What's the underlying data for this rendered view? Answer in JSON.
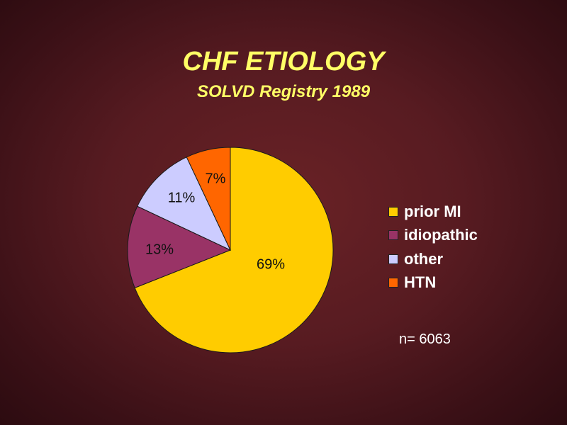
{
  "chart_data": {
    "type": "pie",
    "title": "CHF ETIOLOGY",
    "subtitle": "SOLVD Registry 1989",
    "categories": [
      "prior MI",
      "idiopathic",
      "other",
      "HTN"
    ],
    "values": [
      69,
      13,
      11,
      7
    ],
    "value_labels": [
      "69%",
      "13%",
      "11%",
      "7%"
    ],
    "colors": [
      "#ffcc00",
      "#993366",
      "#ccccff",
      "#ff6600"
    ],
    "start_angle_deg": 0,
    "direction": "clockwise",
    "legend_position": "right",
    "annotation": "n= 6063"
  }
}
